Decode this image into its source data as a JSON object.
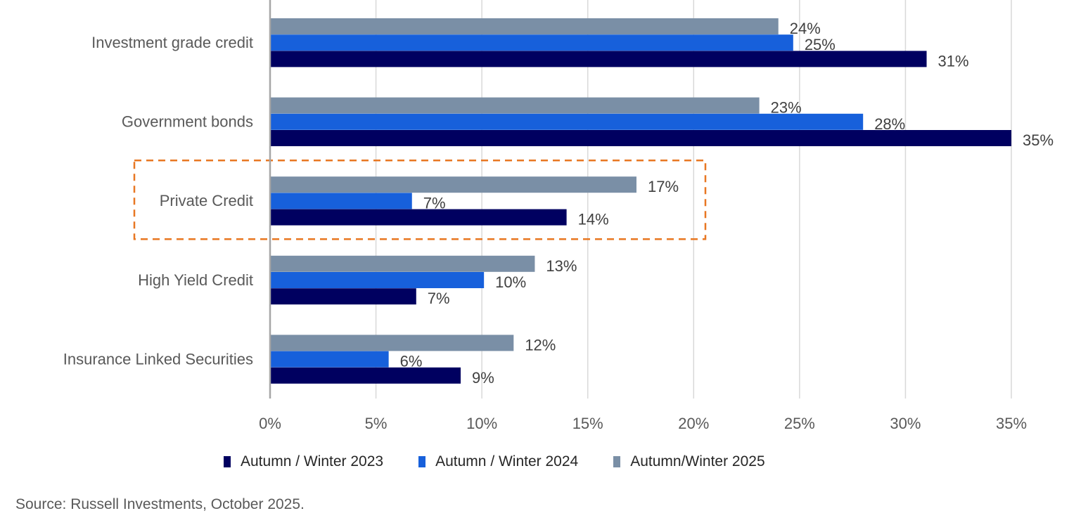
{
  "chart_data": {
    "type": "bar",
    "orientation": "horizontal",
    "categories": [
      "Investment grade credit",
      "Government bonds",
      "Private Credit",
      "High Yield Credit",
      "Insurance Linked Securities"
    ],
    "series": [
      {
        "name": "Autumn/Winter 2025",
        "color": "#7A8FA6",
        "values": [
          24.0,
          23.1,
          17.3,
          12.5,
          11.5
        ],
        "labels": [
          "24%",
          "23%",
          "17%",
          "13%",
          "12%"
        ]
      },
      {
        "name": "Autumn / Winter 2024",
        "color": "#1760DB",
        "values": [
          24.7,
          28.0,
          6.7,
          10.1,
          5.6
        ],
        "labels": [
          "25%",
          "28%",
          "7%",
          "10%",
          "6%"
        ]
      },
      {
        "name": "Autumn / Winter 2023",
        "color": "#000060",
        "values": [
          31.0,
          35.0,
          14.0,
          6.9,
          9.0
        ],
        "labels": [
          "31%",
          "35%",
          "14%",
          "7%",
          "9%"
        ]
      }
    ],
    "xlim": [
      0,
      35
    ],
    "xticks": [
      "0%",
      "5%",
      "10%",
      "15%",
      "20%",
      "25%",
      "30%",
      "35%"
    ],
    "grid": "vertical",
    "legend_position": "bottom",
    "highlight": {
      "category": "Private Credit",
      "style": "dashed box",
      "color": "#E87722"
    }
  },
  "legend": [
    {
      "label": "Autumn / Winter 2023",
      "color": "#000060"
    },
    {
      "label": "Autumn / Winter 2024",
      "color": "#1760DB"
    },
    {
      "label": "Autumn/Winter 2025",
      "color": "#7A8FA6"
    }
  ],
  "source": "Source: Russell Investments, October 2025."
}
